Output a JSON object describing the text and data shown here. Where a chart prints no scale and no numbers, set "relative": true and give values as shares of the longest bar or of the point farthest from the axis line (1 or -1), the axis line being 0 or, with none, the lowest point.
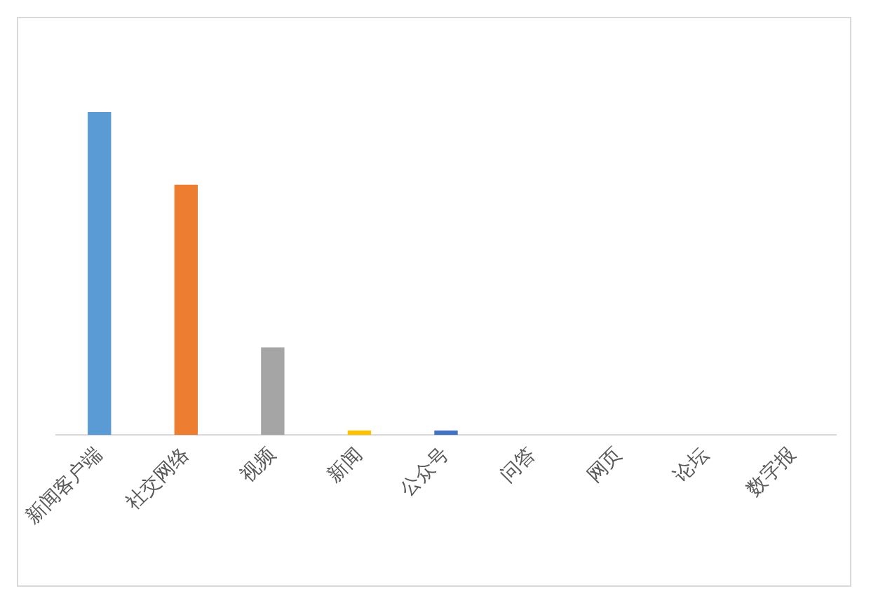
{
  "chart_data": {
    "type": "bar",
    "relative": true,
    "categories": [
      "新闻客户端",
      "社交网络",
      "视频",
      "新闻",
      "公众号",
      "问答",
      "网页",
      "论坛",
      "数字报"
    ],
    "values": [
      1,
      0.775,
      0.271,
      0.014,
      0.014,
      0,
      0,
      0,
      0
    ],
    "colors": [
      "#5b9bd5",
      "#ed7d31",
      "#a5a5a5",
      "#ffc000",
      "#4472c4",
      "#70ad47",
      "#255e91",
      "#9e480e",
      "#636363"
    ],
    "grid": false,
    "legend": false
  }
}
